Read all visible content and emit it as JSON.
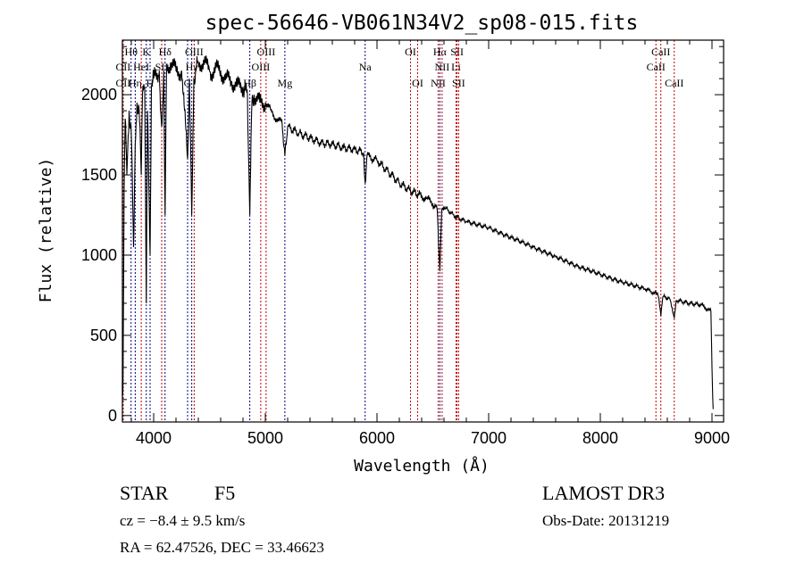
{
  "chart_data": {
    "type": "line",
    "title": "spec-56646-VB061N34V2_sp08-015.fits",
    "xlabel": "Wavelength (Å)",
    "ylabel": "Flux (relative)",
    "xlim": [
      3720,
      9104
    ],
    "ylim": [
      -40,
      2340
    ],
    "xticks": [
      4000,
      5000,
      6000,
      7000,
      8000,
      9000
    ],
    "yticks": [
      0,
      500,
      1000,
      1500,
      2000
    ],
    "grid": false,
    "series": [
      {
        "name": "spectrum",
        "color": "#000000",
        "x": [
          3700,
          3725,
          3735,
          3745,
          3760,
          3780,
          3800,
          3820,
          3835,
          3850,
          3870,
          3889,
          3900,
          3920,
          3934,
          3945,
          3968,
          3980,
          4000,
          4050,
          4072,
          4090,
          4102,
          4115,
          4150,
          4200,
          4250,
          4304,
          4320,
          4341,
          4360,
          4400,
          4450,
          4500,
          4550,
          4600,
          4650,
          4700,
          4750,
          4800,
          4840,
          4861,
          4880,
          4900,
          4950,
          5000,
          5050,
          5100,
          5150,
          5175,
          5200,
          5300,
          5400,
          5500,
          5600,
          5700,
          5800,
          5880,
          5894,
          5910,
          6000,
          6100,
          6200,
          6300,
          6400,
          6450,
          6500,
          6540,
          6563,
          6580,
          6600,
          6700,
          6800,
          6900,
          7000,
          7200,
          7400,
          7600,
          7800,
          8000,
          8200,
          8400,
          8498,
          8520,
          8542,
          8560,
          8620,
          8662,
          8680,
          8800,
          8900,
          8990,
          9000,
          9010
        ],
        "y": [
          200,
          150,
          1400,
          1850,
          1500,
          1900,
          1750,
          1050,
          1700,
          1950,
          1900,
          1500,
          2000,
          2050,
          700,
          1900,
          1000,
          2050,
          2100,
          2150,
          1800,
          2150,
          1250,
          2150,
          2200,
          2150,
          2150,
          1600,
          2100,
          1250,
          2100,
          2200,
          2200,
          2150,
          2150,
          2150,
          2100,
          2080,
          2050,
          2050,
          2000,
          1250,
          1950,
          2000,
          1950,
          1950,
          1900,
          1850,
          1820,
          1620,
          1800,
          1760,
          1730,
          1700,
          1690,
          1670,
          1660,
          1640,
          1450,
          1620,
          1590,
          1520,
          1450,
          1400,
          1370,
          1350,
          1320,
          1280,
          900,
          1280,
          1300,
          1240,
          1210,
          1190,
          1170,
          1110,
          1050,
          990,
          930,
          880,
          830,
          790,
          760,
          740,
          620,
          740,
          730,
          610,
          720,
          700,
          690,
          650,
          300,
          40
        ]
      }
    ],
    "line_markers": [
      {
        "wavelength": 3727,
        "label": "OII",
        "row": 2
      },
      {
        "wavelength": 3727,
        "label": "OII",
        "row": 3
      },
      {
        "wavelength": 3798,
        "label": "Hθ",
        "row": 1
      },
      {
        "wavelength": 3835,
        "label": "Hη",
        "row": 3
      },
      {
        "wavelength": 3889,
        "label": "HeI",
        "row": 2
      },
      {
        "wavelength": 3934,
        "label": "K",
        "row": 1
      },
      {
        "wavelength": 3968,
        "label": "H",
        "row": 3
      },
      {
        "wavelength": 4072,
        "label": "SII",
        "row": 2
      },
      {
        "wavelength": 4102,
        "label": "Hδ",
        "row": 1
      },
      {
        "wavelength": 4304,
        "label": "G",
        "row": 3
      },
      {
        "wavelength": 4341,
        "label": "Hγ",
        "row": 2
      },
      {
        "wavelength": 4363,
        "label": "OIII",
        "row": 1
      },
      {
        "wavelength": 4861,
        "label": "Hβ",
        "row": 3
      },
      {
        "wavelength": 4959,
        "label": "OIII",
        "row": 2
      },
      {
        "wavelength": 5007,
        "label": "OIII",
        "row": 1
      },
      {
        "wavelength": 5175,
        "label": "Mg",
        "row": 3
      },
      {
        "wavelength": 5894,
        "label": "Na",
        "row": 2
      },
      {
        "wavelength": 6300,
        "label": "OI",
        "row": 1
      },
      {
        "wavelength": 6364,
        "label": "OI",
        "row": 3
      },
      {
        "wavelength": 6548,
        "label": "NII",
        "row": 3
      },
      {
        "wavelength": 6563,
        "label": "Hα",
        "row": 1
      },
      {
        "wavelength": 6583,
        "label": "NII",
        "row": 2
      },
      {
        "wavelength": 6708,
        "label": "Li",
        "row": 2
      },
      {
        "wavelength": 6717,
        "label": "SII",
        "row": 1
      },
      {
        "wavelength": 6731,
        "label": "SII",
        "row": 3
      },
      {
        "wavelength": 8498,
        "label": "CaII",
        "row": 2
      },
      {
        "wavelength": 8542,
        "label": "CaII",
        "row": 1
      },
      {
        "wavelength": 8662,
        "label": "CaII",
        "row": 3
      }
    ],
    "marker_colors": {
      "hydrogen_metal": "#000080",
      "other": "#c00000"
    }
  },
  "info": {
    "object_class": "STAR",
    "subclass": "F5",
    "redshift": "cz = −8.4 ± 9.5 km/s",
    "coords": "RA =  62.47526, DEC =  33.46623",
    "survey": "LAMOST DR3",
    "obs_date": "Obs-Date: 20131219"
  }
}
